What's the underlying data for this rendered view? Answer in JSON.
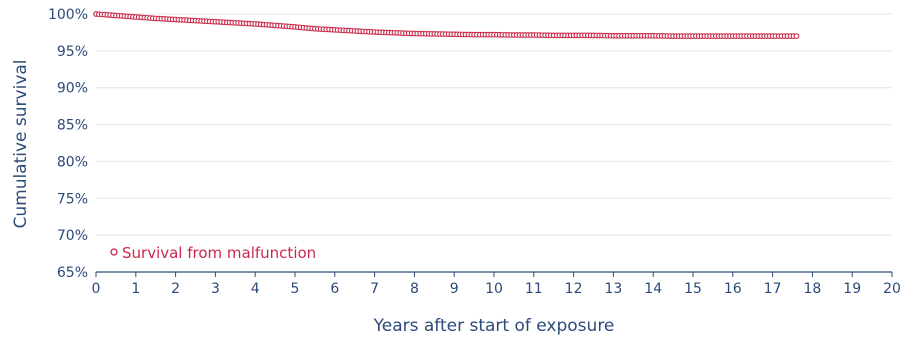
{
  "chart_data": {
    "type": "scatter",
    "title": "",
    "xlabel": "Years after start of exposure",
    "ylabel": "Cumulative survival",
    "xlim": [
      0,
      20
    ],
    "ylim": [
      65,
      100
    ],
    "x_ticks": [
      0,
      1,
      2,
      3,
      4,
      5,
      6,
      7,
      8,
      9,
      10,
      11,
      12,
      13,
      14,
      15,
      16,
      17,
      18,
      19,
      20
    ],
    "y_ticks": [
      65,
      70,
      75,
      80,
      85,
      90,
      95,
      100
    ],
    "y_tick_format": "percent",
    "grid": {
      "horizontal": true,
      "vertical": false
    },
    "legend_position": "bottom-left",
    "colors": {
      "series": "#c8294a",
      "axis": "#2d4a7a",
      "grid": "#e6e6e6"
    },
    "series": [
      {
        "name": "Survival from malfunction",
        "marker": "open-circle",
        "x": [
          0,
          0.5,
          1,
          1.5,
          2,
          2.5,
          3,
          3.5,
          4,
          4.5,
          5,
          5.5,
          6,
          6.5,
          7,
          7.5,
          8,
          8.5,
          9,
          9.5,
          10,
          10.5,
          11,
          11.5,
          12,
          12.5,
          13,
          13.5,
          14,
          14.5,
          15,
          15.5,
          16,
          16.5,
          17,
          17.6
        ],
        "y": [
          100,
          99.8,
          99.6,
          99.4,
          99.25,
          99.1,
          98.95,
          98.8,
          98.65,
          98.45,
          98.25,
          98.0,
          97.85,
          97.7,
          97.55,
          97.45,
          97.35,
          97.3,
          97.25,
          97.2,
          97.2,
          97.15,
          97.15,
          97.1,
          97.1,
          97.1,
          97.05,
          97.05,
          97.05,
          97.0,
          97.0,
          97.0,
          97.0,
          97.0,
          97.0,
          97.0
        ]
      }
    ]
  }
}
